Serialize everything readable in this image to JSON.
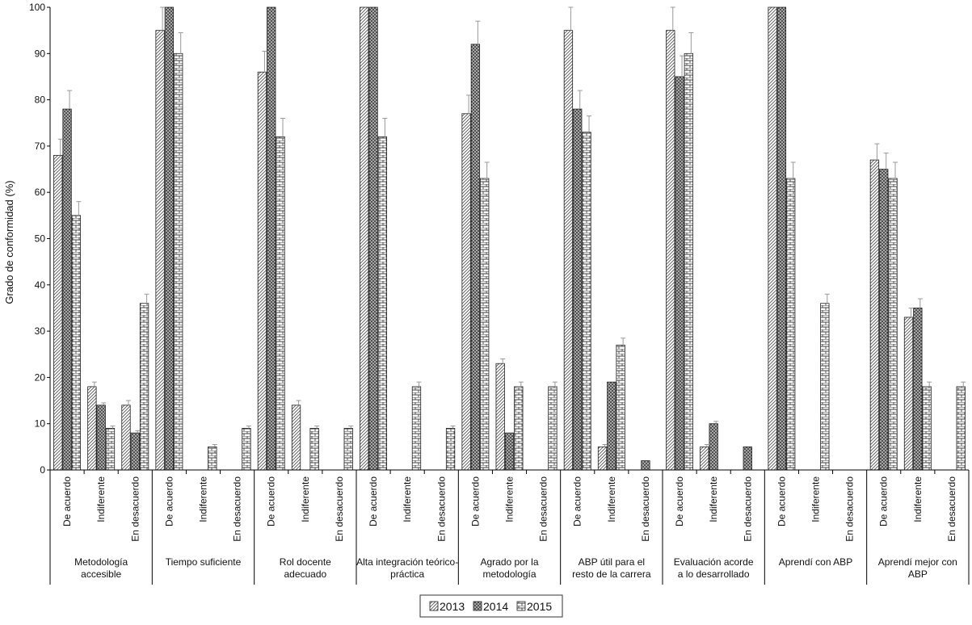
{
  "chart_data": {
    "type": "bar",
    "ylabel": "Grado de conformidad (%)",
    "ylim": [
      0,
      100
    ],
    "yticks": [
      0,
      10,
      20,
      30,
      40,
      50,
      60,
      70,
      80,
      90,
      100
    ],
    "grid": false,
    "legend_position": "bottom",
    "responses": [
      "De acuerdo",
      "Indiferente",
      "En desacuerdo"
    ],
    "groups": [
      {
        "label": "Metodología accesible",
        "label_lines": [
          "Metodología",
          "accesible"
        ]
      },
      {
        "label": "Tiempo suficiente",
        "label_lines": [
          "Tiempo suficiente"
        ]
      },
      {
        "label": "Rol docente adecuado",
        "label_lines": [
          "Rol docente",
          "adecuado"
        ]
      },
      {
        "label": "Alta integración teórico-práctica",
        "label_lines": [
          "Alta integración teórico-",
          "práctica"
        ]
      },
      {
        "label": "Agrado por la metodología",
        "label_lines": [
          "Agrado por la",
          "metodología"
        ]
      },
      {
        "label": "ABP útil para el resto de la carrera",
        "label_lines": [
          "ABP útil para el",
          "resto de la carrera"
        ]
      },
      {
        "label": "Evaluación acorde a lo desarrollado",
        "label_lines": [
          "Evaluación acorde",
          "a lo desarrollado"
        ]
      },
      {
        "label": "Aprendí con ABP",
        "label_lines": [
          "Aprendí con ABP"
        ]
      },
      {
        "label": "Aprendí mejor con ABP",
        "label_lines": [
          "Aprendí mejor con",
          "ABP"
        ]
      }
    ],
    "series": [
      {
        "name": "2013",
        "pattern": "diagonal",
        "values": [
          68,
          18,
          14,
          95,
          0,
          0,
          86,
          14,
          0,
          100,
          0,
          0,
          77,
          23,
          0,
          95,
          5,
          0,
          95,
          5,
          0,
          100,
          0,
          0,
          67,
          33,
          0
        ]
      },
      {
        "name": "2014",
        "pattern": "crosshatch",
        "values": [
          78,
          14,
          8,
          100,
          0,
          0,
          100,
          0,
          0,
          100,
          0,
          0,
          92,
          8,
          0,
          78,
          19,
          2,
          85,
          10,
          5,
          100,
          0,
          0,
          65,
          35,
          0
        ]
      },
      {
        "name": "2015",
        "pattern": "brick",
        "values": [
          55,
          9,
          36,
          90,
          5,
          9,
          72,
          9,
          9,
          72,
          18,
          9,
          63,
          18,
          18,
          73,
          27,
          0,
          90,
          0,
          0,
          63,
          36,
          0,
          63,
          18,
          18
        ]
      }
    ],
    "errors": [
      [
        3.5,
        1,
        1,
        5,
        0,
        0,
        4.5,
        1,
        0,
        0,
        0,
        0,
        4,
        1,
        0,
        5,
        0.5,
        0,
        5,
        0.5,
        0,
        0,
        0,
        0,
        3.5,
        2,
        0
      ],
      [
        4,
        0.5,
        0.5,
        0,
        0,
        0,
        0,
        0,
        0,
        0,
        0,
        0,
        5,
        0,
        0,
        4,
        0,
        0,
        4.5,
        0.5,
        0,
        0,
        0,
        0,
        3.5,
        2,
        0
      ],
      [
        3,
        0.5,
        2,
        4.5,
        0.5,
        0.5,
        4,
        0.5,
        0.5,
        4,
        1,
        0.5,
        3.5,
        1,
        1,
        3.5,
        1.5,
        0,
        4.5,
        0,
        0,
        3.5,
        2,
        0,
        3.5,
        1,
        1
      ]
    ]
  }
}
